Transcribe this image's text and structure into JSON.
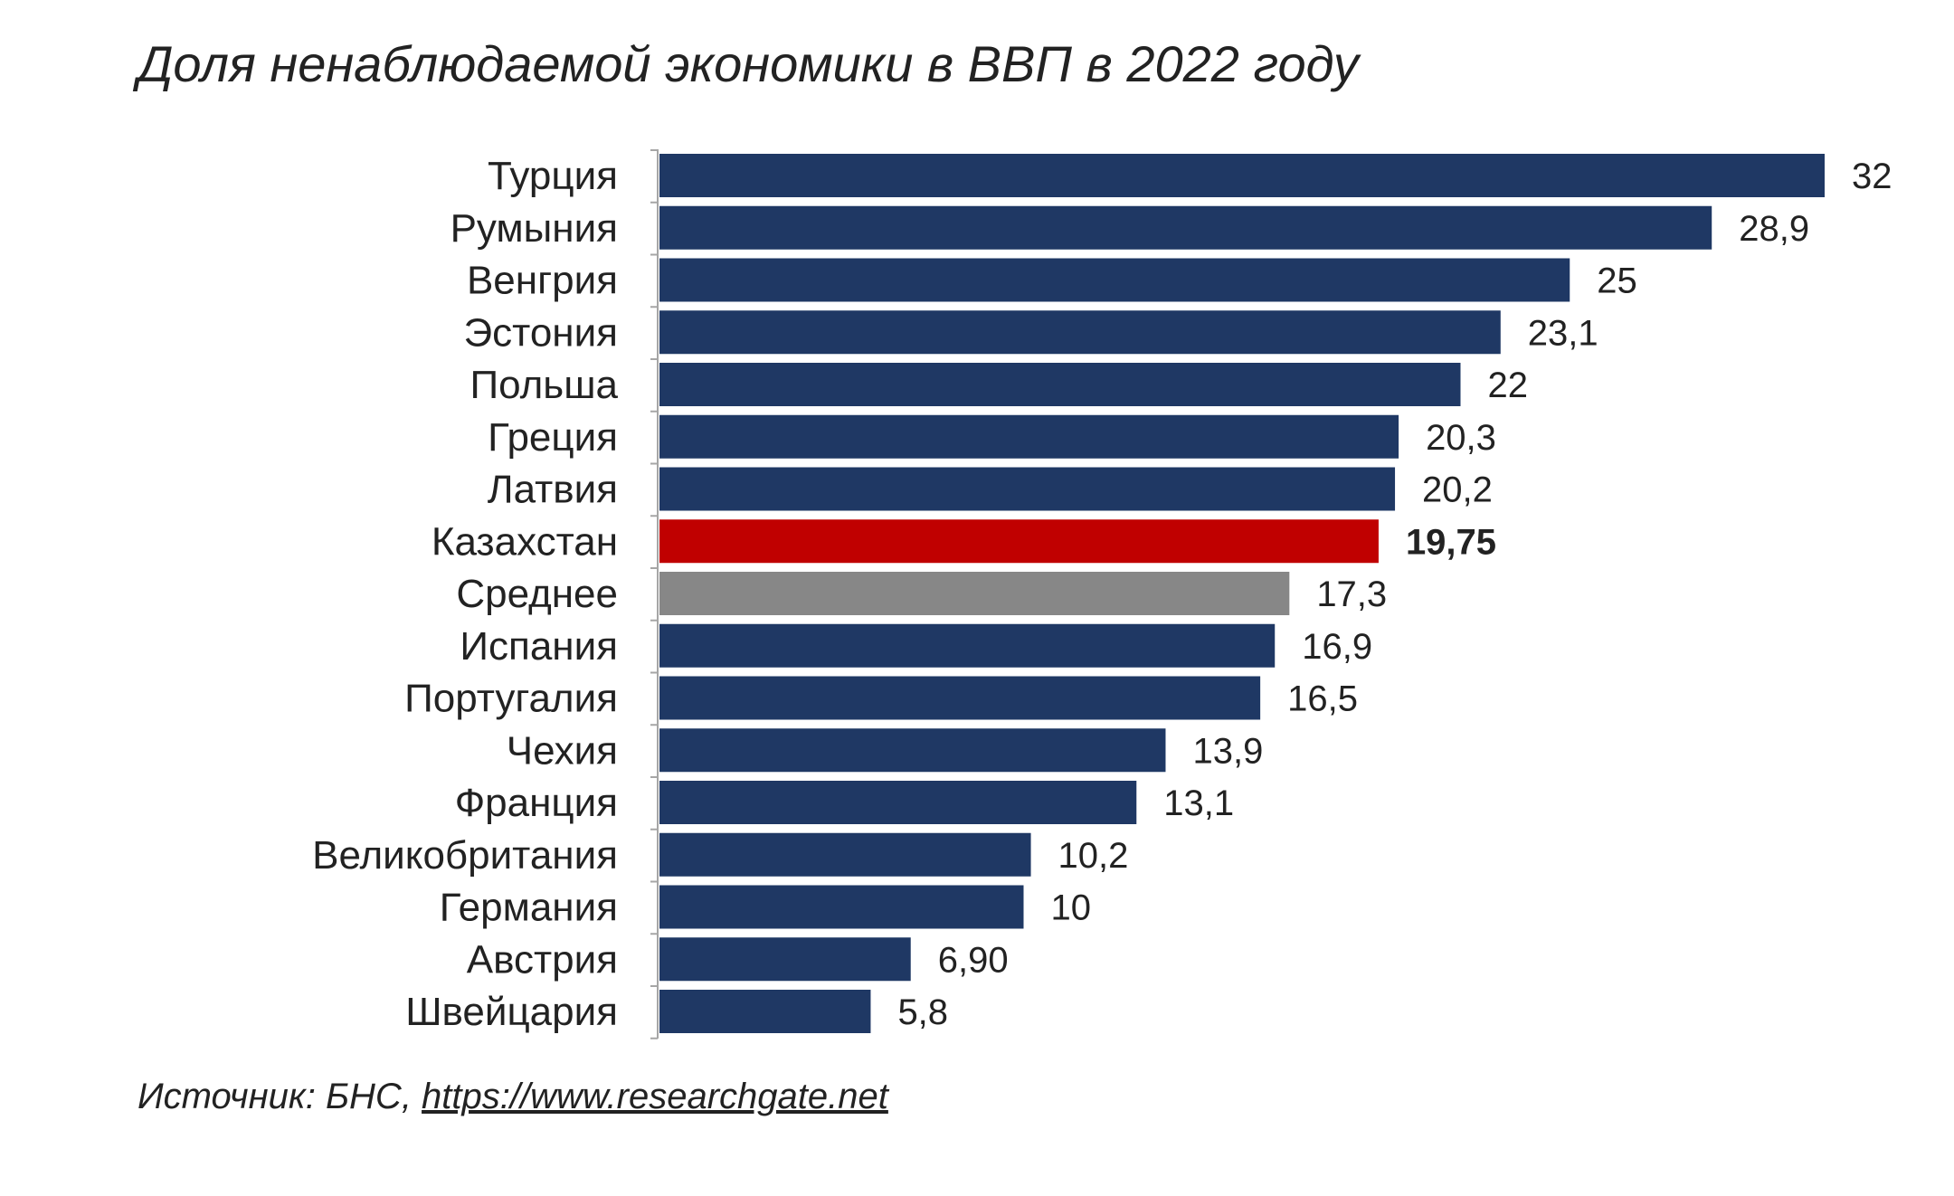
{
  "chart_data": {
    "type": "bar",
    "orientation": "horizontal",
    "title": "Доля ненаблюдаемой экономики в ВВП в 2022 году",
    "categories": [
      "Турция",
      "Румыния",
      "Венгрия",
      "Эстония",
      "Польша",
      "Греция",
      "Латвия",
      "Казахстан",
      "Среднее",
      "Испания",
      "Португалия",
      "Чехия",
      "Франция",
      "Великобритания",
      "Германия",
      "Австрия",
      "Швейцария"
    ],
    "values": [
      32,
      28.9,
      25,
      23.1,
      22,
      20.3,
      20.2,
      19.75,
      17.3,
      16.9,
      16.5,
      13.9,
      13.1,
      10.2,
      10,
      6.9,
      5.8
    ],
    "value_labels": [
      "32",
      "28,9",
      "25",
      "23,1",
      "22",
      "20,3",
      "20,2",
      "19,75",
      "17,3",
      "16,9",
      "16,5",
      "13,9",
      "13,1",
      "10,2",
      "10",
      "6,90",
      "5,8"
    ],
    "highlight": {
      "Казахстан": "#c00000",
      "Среднее": "#878787"
    },
    "bold_labels": [
      "Казахстан"
    ],
    "bar_color": "#1f3864",
    "xlim": [
      0,
      32
    ],
    "grid": false,
    "legend": "none"
  },
  "source": {
    "prefix": "Источник: БНС, ",
    "link": "https://www.researchgate.net"
  }
}
